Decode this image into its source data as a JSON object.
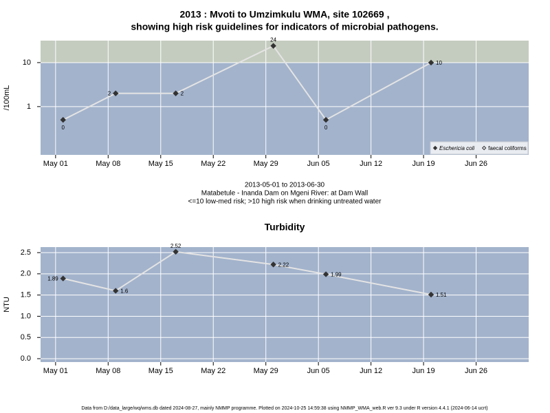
{
  "chart_data": [
    {
      "type": "line",
      "title": "2013 : Mvoti to Umzimkulu WMA, site 102669 ,",
      "subtitle": "showing high risk guidelines for indicators of microbial pathogens.",
      "ylabel": "/100mL",
      "log_y": true,
      "x": [
        "2013-05-02",
        "2013-05-09",
        "2013-05-17",
        "2013-05-30",
        "2013-06-06",
        "2013-06-20"
      ],
      "series": [
        {
          "name": "Eschericia coli",
          "color": "#333333",
          "line_color": "#e4e4e4",
          "marker": "filled",
          "values": [
            0.5,
            2,
            2,
            24,
            0.5,
            10
          ],
          "value_labels": [
            "0",
            "2",
            "2",
            "24",
            "0",
            "10"
          ]
        },
        {
          "name": "faecal coliforms",
          "color": "#333333",
          "marker": "open",
          "values": [
            null,
            null,
            null,
            null,
            null,
            null
          ]
        }
      ],
      "xlim": [
        "2013-04-29",
        "2013-07-03"
      ],
      "xticks": [
        {
          "value": "2013-05-01",
          "label": "May 01"
        },
        {
          "value": "2013-05-08",
          "label": "May 08"
        },
        {
          "value": "2013-05-15",
          "label": "May 15"
        },
        {
          "value": "2013-05-22",
          "label": "May 22"
        },
        {
          "value": "2013-05-29",
          "label": "May 29"
        },
        {
          "value": "2013-06-05",
          "label": "Jun 05"
        },
        {
          "value": "2013-06-12",
          "label": "Jun 12"
        },
        {
          "value": "2013-06-19",
          "label": "Jun 19"
        },
        {
          "value": "2013-06-26",
          "label": "Jun 26"
        }
      ],
      "ylim": [
        0.08,
        31.6
      ],
      "yticks": [
        1,
        10
      ],
      "grid": true,
      "legend": "lower right",
      "high_risk_above": 10,
      "background_color": "#a3b3cc",
      "high_risk_color": "#c4ccbf",
      "notes": [
        "2013-05-01 to 2013-06-30",
        "Matabetule - Inanda Dam on Mgeni River: at Dam Wall",
        "<=10 low-med risk; >10 high risk when drinking untreated water"
      ]
    },
    {
      "type": "line",
      "title": "Turbidity",
      "ylabel": "NTU",
      "x": [
        "2013-05-02",
        "2013-05-09",
        "2013-05-17",
        "2013-05-30",
        "2013-06-06",
        "2013-06-20"
      ],
      "series": [
        {
          "color": "#333333",
          "line_color": "#e4e4e4",
          "marker": "filled",
          "values": [
            1.89,
            1.6,
            2.52,
            2.22,
            1.99,
            1.51
          ]
        }
      ],
      "xlim": [
        "2013-04-29",
        "2013-07-03"
      ],
      "xticks": [
        {
          "value": "2013-05-01",
          "label": "May 01"
        },
        {
          "value": "2013-05-08",
          "label": "May 08"
        },
        {
          "value": "2013-05-15",
          "label": "May 15"
        },
        {
          "value": "2013-05-22",
          "label": "May 22"
        },
        {
          "value": "2013-05-29",
          "label": "May 29"
        },
        {
          "value": "2013-06-05",
          "label": "Jun 05"
        },
        {
          "value": "2013-06-12",
          "label": "Jun 12"
        },
        {
          "value": "2013-06-19",
          "label": "Jun 19"
        },
        {
          "value": "2013-06-26",
          "label": "Jun 26"
        }
      ],
      "ylim": [
        -0.08,
        2.63
      ],
      "yticks": [
        {
          "value": 0,
          "label": "0.0"
        },
        0.5,
        {
          "value": 1,
          "label": "1.0"
        },
        1.5,
        {
          "value": 2,
          "label": "2.0"
        },
        2.5
      ],
      "grid": true,
      "background_color": "#a3b3cc"
    }
  ],
  "footer": "Data from D:/data_large/wq/wms.db dated 2024-08-27, mainly NMMP programme. Plotted on 2024-10-25 14:59:38 using NMMP_WMA_web.R ver 9.3 under R version 4.4.1 (2024-06-14 ucrt)"
}
